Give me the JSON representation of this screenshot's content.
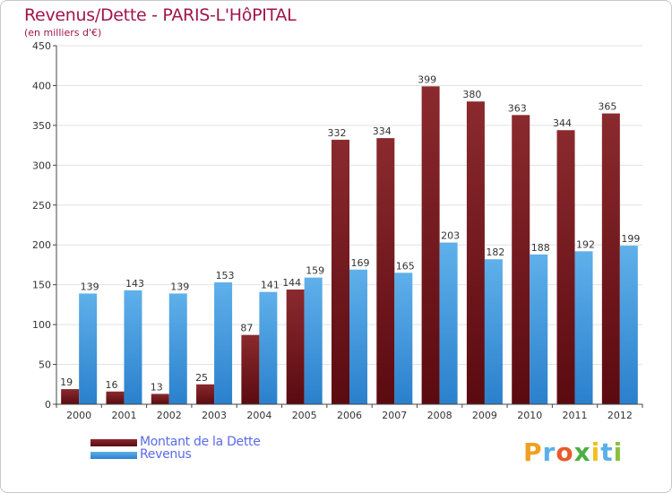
{
  "title": "Revenus/Dette - PARIS-L'HôPITAL",
  "subtitle": "(en milliers d'€)",
  "colors": {
    "dette_top": "#8a2a2e",
    "dette_bottom": "#5a0a10",
    "revenus_top": "#5fb0ea",
    "revenus_bottom": "#2a80cc",
    "grid": "#e2e2e2",
    "axis": "#444444",
    "title": "#a0164a",
    "legend_text": "#5a6ae6"
  },
  "legend": {
    "dette_label": "Montant de la Dette",
    "revenus_label": "Revenus"
  },
  "logo": {
    "letters": [
      "P",
      "r",
      "o",
      "x",
      "i",
      "t",
      "i"
    ],
    "colors": [
      "#f0a020",
      "#5ab0e8",
      "#e85a2a",
      "#4ab040",
      "#f0c020",
      "#5ab0e8",
      "#8ac040"
    ]
  },
  "chart_data": {
    "type": "bar",
    "title": "Revenus/Dette - PARIS-L'HôPITAL",
    "subtitle": "(en milliers d'€)",
    "categories": [
      "2000",
      "2001",
      "2002",
      "2003",
      "2004",
      "2005",
      "2006",
      "2007",
      "2008",
      "2009",
      "2010",
      "2011",
      "2012"
    ],
    "series": [
      {
        "name": "Montant de la Dette",
        "values": [
          19,
          16,
          13,
          25,
          87,
          144,
          332,
          334,
          399,
          380,
          363,
          344,
          365
        ]
      },
      {
        "name": "Revenus",
        "values": [
          139,
          143,
          139,
          153,
          141,
          159,
          169,
          165,
          203,
          182,
          188,
          192,
          199
        ]
      }
    ],
    "ylim": [
      0,
      450
    ],
    "yticks": [
      0,
      50,
      100,
      150,
      200,
      250,
      300,
      350,
      400,
      450
    ],
    "grid": true,
    "legend_position": "bottom-left"
  }
}
